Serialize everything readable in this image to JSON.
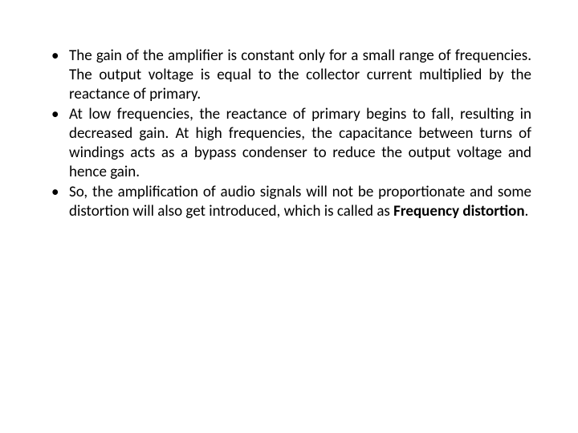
{
  "slide": {
    "text_color": "#000000",
    "background_color": "#ffffff",
    "font_size": 19,
    "font_family": "Calibri",
    "text_align": "justify",
    "bullets": [
      {
        "text": "The gain of the amplifier is constant only for a small range of frequencies. The output voltage is equal to the collector current multiplied by the reactance of primary.",
        "has_bold": false
      },
      {
        "text": "At low frequencies, the reactance of primary begins to fall, resulting in decreased gain. At high frequencies, the capacitance between turns of windings acts as a bypass condenser to reduce the output voltage and hence gain.",
        "has_bold": false
      },
      {
        "text_prefix": "So, the amplification of audio signals will not be proportionate and some distortion will also get introduced, which is called as ",
        "text_bold": "Frequency distortion",
        "text_suffix": ".",
        "has_bold": true
      }
    ]
  }
}
